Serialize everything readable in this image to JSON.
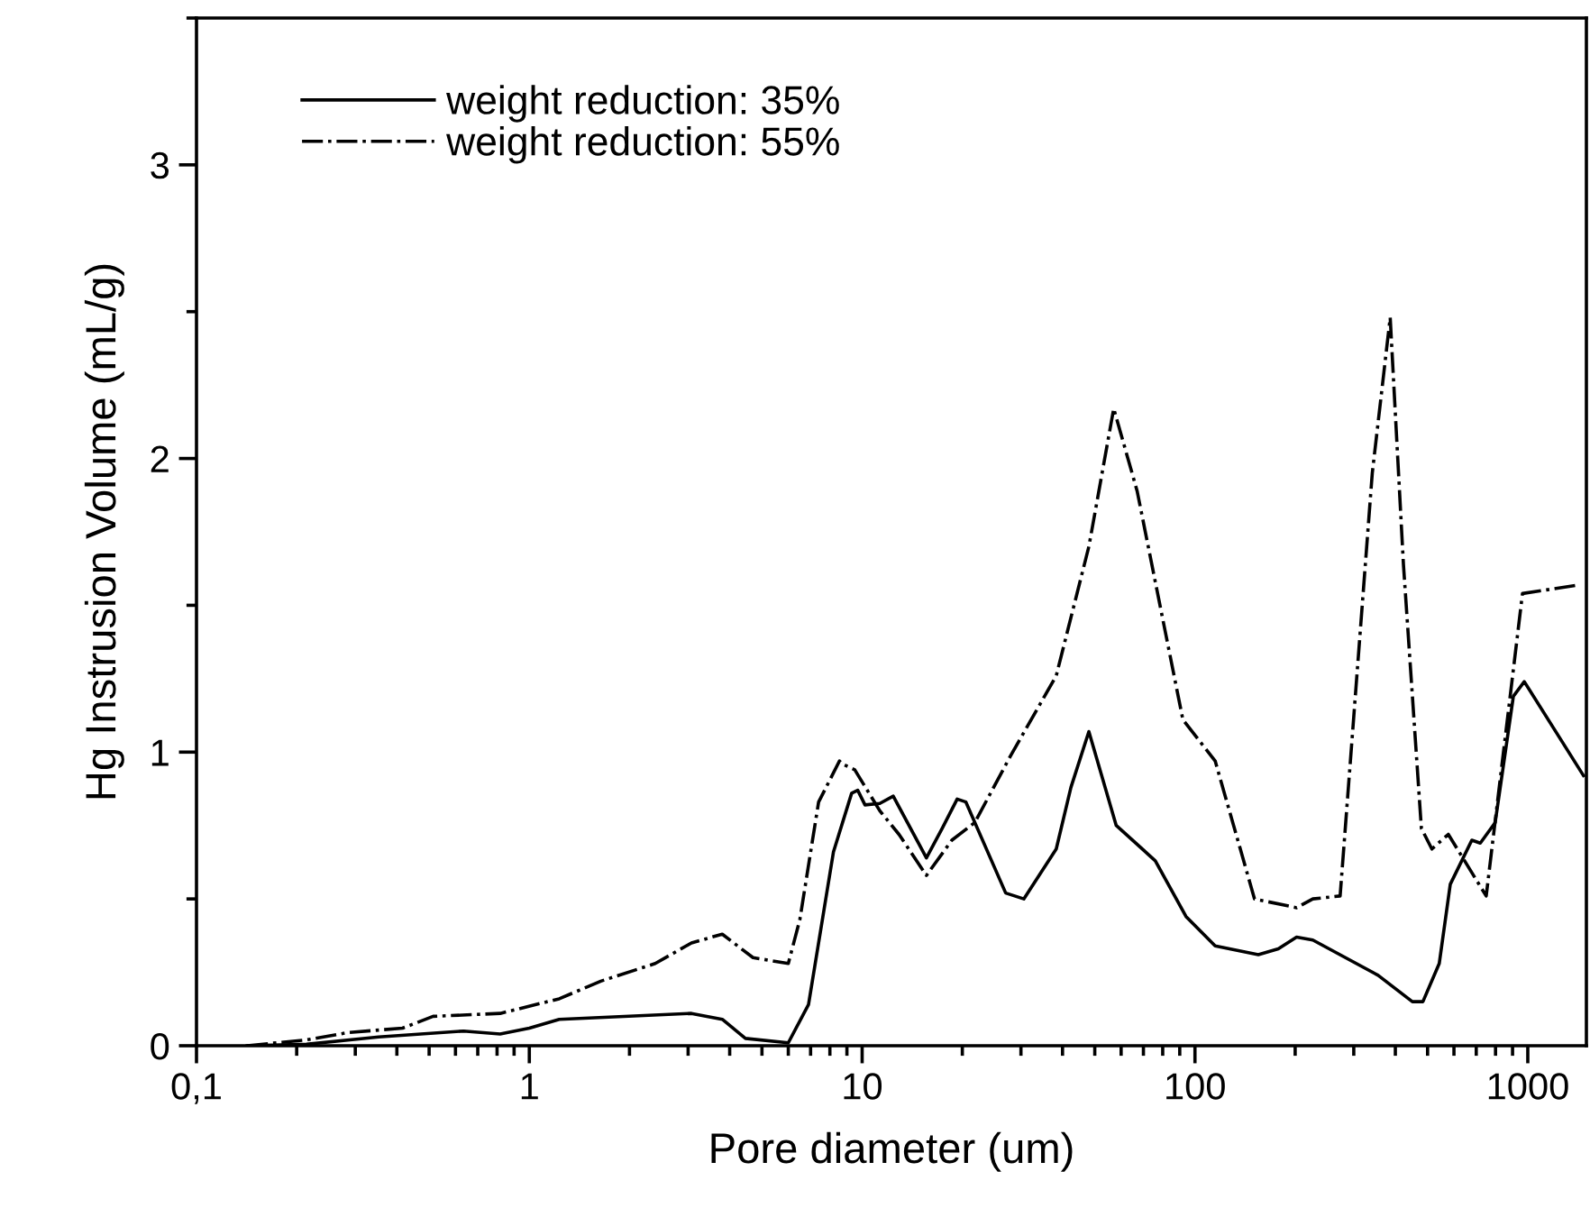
{
  "chart_data": {
    "type": "line",
    "xlabel": "Pore diameter (um)",
    "ylabel": "Hg Instrusion Volume (mL/g)",
    "log": "x",
    "xlim": [
      0.1,
      1500
    ],
    "xticks": [
      {
        "value": 0.1,
        "label": "0,1"
      },
      1,
      10,
      100,
      1000
    ],
    "ylim": [
      0,
      3.5
    ],
    "yticks": [
      0,
      1,
      2,
      3
    ],
    "grid": false,
    "legend": "top left",
    "marker": "none",
    "series": [
      {
        "name": "weight reduction: 35%",
        "color": "#000000",
        "line_style": "solid",
        "x": [
          0.142,
          0.214,
          0.353,
          0.635,
          0.817,
          1.0,
          1.23,
          3.07,
          3.8,
          4.46,
          6.0,
          6.9,
          8.2,
          9.3,
          9.7,
          10.2,
          11.3,
          12.4,
          15.6,
          17.4,
          19.3,
          20.5,
          27,
          30.6,
          38.3,
          42.4,
          48,
          58,
          76,
          94,
          115,
          155,
          178,
          202,
          226,
          355,
          450,
          484,
          542,
          585,
          679,
          720,
          798,
          905,
          976,
          1470
        ],
        "values": [
          0,
          0.005,
          0.03,
          0.05,
          0.04,
          0.06,
          0.09,
          0.11,
          0.09,
          0.025,
          0.01,
          0.14,
          0.66,
          0.86,
          0.87,
          0.82,
          0.825,
          0.85,
          0.64,
          0.74,
          0.84,
          0.83,
          0.52,
          0.5,
          0.67,
          0.88,
          1.07,
          0.75,
          0.63,
          0.44,
          0.34,
          0.31,
          0.33,
          0.37,
          0.36,
          0.24,
          0.15,
          0.15,
          0.28,
          0.55,
          0.7,
          0.69,
          0.76,
          1.19,
          1.24,
          0.92
        ]
      },
      {
        "name": "weight reduction: 55%",
        "color": "#000000",
        "line_style": "dashdot",
        "x": [
          0.142,
          0.214,
          0.286,
          0.416,
          0.514,
          0.817,
          1.23,
          1.64,
          2.39,
          3.07,
          3.8,
          4.7,
          6.0,
          6.5,
          7.4,
          8.55,
          8.7,
          9.5,
          11.3,
          12.9,
          15.6,
          18.6,
          21.8,
          28,
          38.3,
          48,
          57,
          67,
          92,
          115,
          151,
          202,
          226,
          273,
          341,
          386,
          423,
          479,
          515,
          577,
          750,
          964,
          1436
        ],
        "values": [
          0,
          0.02,
          0.045,
          0.06,
          0.1,
          0.11,
          0.16,
          0.22,
          0.28,
          0.35,
          0.38,
          0.3,
          0.28,
          0.43,
          0.83,
          0.97,
          0.96,
          0.94,
          0.8,
          0.72,
          0.58,
          0.7,
          0.76,
          0.99,
          1.26,
          1.7,
          2.17,
          1.89,
          1.11,
          0.97,
          0.5,
          0.47,
          0.5,
          0.51,
          1.95,
          2.48,
          1.64,
          0.74,
          0.67,
          0.72,
          0.51,
          1.54,
          1.57
        ]
      }
    ]
  }
}
